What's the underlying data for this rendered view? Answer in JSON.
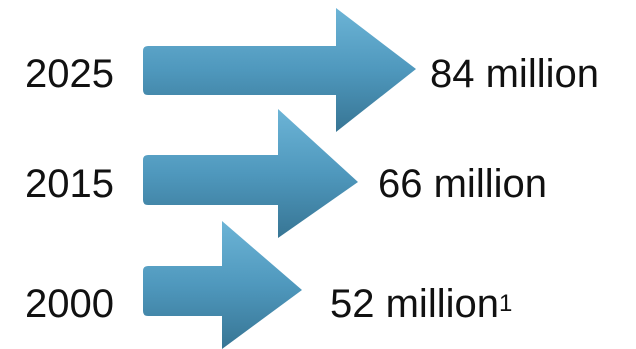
{
  "colors": {
    "arrow_light": "#5AA3C8",
    "arrow_dark": "#3A7A9A",
    "text": "#111111",
    "background": "#FFFFFF"
  },
  "rows": [
    {
      "year": "2025",
      "value": "84 million",
      "note": ""
    },
    {
      "year": "2015",
      "value": "66 million",
      "note": ""
    },
    {
      "year": "2000",
      "value": "52 million",
      "note": "1"
    }
  ]
}
